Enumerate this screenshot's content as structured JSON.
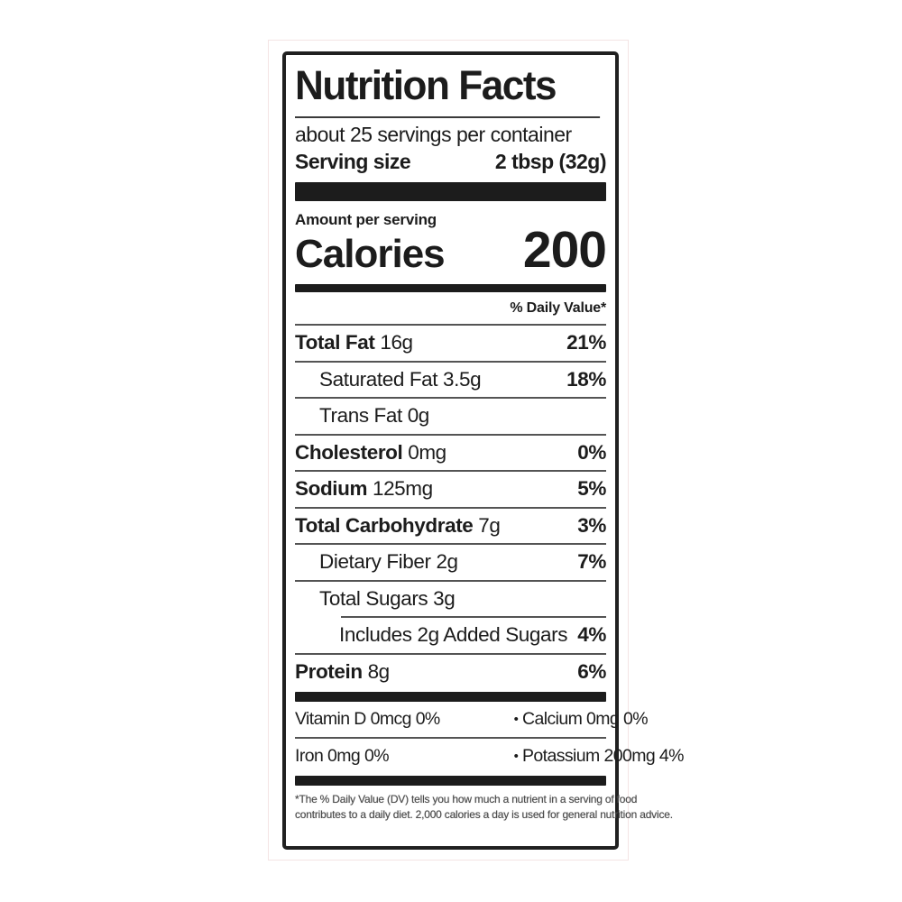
{
  "label": {
    "title": "Nutrition Facts",
    "servings_per_container": "about 25 servings per container",
    "serving_size_label": "Serving size",
    "serving_size_value": "2 tbsp (32g)",
    "amount_per_serving": "Amount per serving",
    "calories_label": "Calories",
    "calories_value": "200",
    "daily_value_header": "% Daily Value*",
    "nutrients": [
      {
        "name": "Total Fat",
        "amount": "16g",
        "dv": "21%",
        "indent": 0,
        "bold": true,
        "sep_indent": false
      },
      {
        "name": "Saturated Fat",
        "amount": "3.5g",
        "dv": "18%",
        "indent": 1,
        "bold": false,
        "sep_indent": false
      },
      {
        "name": "Trans Fat",
        "amount": "0g",
        "dv": "",
        "indent": 1,
        "bold": false,
        "sep_indent": false
      },
      {
        "name": "Cholesterol",
        "amount": "0mg",
        "dv": "0%",
        "indent": 0,
        "bold": true,
        "sep_indent": false
      },
      {
        "name": "Sodium",
        "amount": "125mg",
        "dv": "5%",
        "indent": 0,
        "bold": true,
        "sep_indent": false
      },
      {
        "name": "Total Carbohydrate",
        "amount": "7g",
        "dv": "3%",
        "indent": 0,
        "bold": true,
        "sep_indent": false
      },
      {
        "name": "Dietary Fiber",
        "amount": "2g",
        "dv": "7%",
        "indent": 1,
        "bold": false,
        "sep_indent": false
      },
      {
        "name": "Total Sugars",
        "amount": "3g",
        "dv": "",
        "indent": 1,
        "bold": false,
        "sep_indent": false
      },
      {
        "name": "Includes 2g Added Sugars",
        "amount": "",
        "dv": "4%",
        "indent": 2,
        "bold": false,
        "sep_indent": true
      },
      {
        "name": "Protein",
        "amount": "8g",
        "dv": "6%",
        "indent": 0,
        "bold": true,
        "sep_indent": false
      }
    ],
    "micro_bullet": "•",
    "micronutrients": [
      {
        "left": "Vitamin D 0mcg 0%",
        "right": "Calcium 0mg 0%"
      },
      {
        "left": "Iron 0mg 0%",
        "right": "Potassium 200mg 4%"
      }
    ],
    "footnote_line1": "*The % Daily Value (DV) tells you how much a nutrient in a serving of food",
    "footnote_line2": "contributes to a daily diet. 2,000 calories a day is used for general nutrition advice."
  }
}
